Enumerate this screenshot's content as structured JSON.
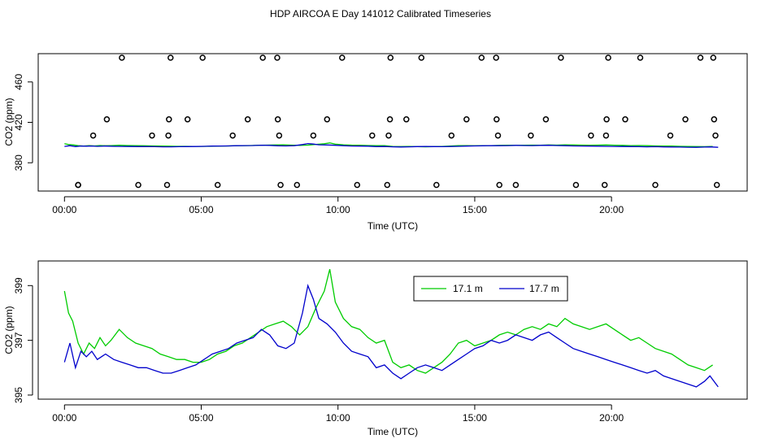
{
  "figure": {
    "title": "HDP AIRCOA E  Day 141012  Calibrated Timeseries"
  },
  "chart_data": [
    {
      "type": "line",
      "xlabel": "Time (UTC)",
      "ylabel": "CO2 (ppm)",
      "xlim": [
        0,
        24
      ],
      "ylim": [
        352,
        488
      ],
      "x_ticks": [
        0,
        5,
        10,
        15,
        20
      ],
      "x_tick_labels": [
        "00:00",
        "05:00",
        "10:00",
        "15:00",
        "20:00"
      ],
      "y_ticks": [
        380,
        420,
        460
      ],
      "y_tick_labels": [
        "380",
        "420",
        "460"
      ],
      "grid": false,
      "legend": "none",
      "calibration_points": [
        [
          0.5,
          358
        ],
        [
          0.5,
          358
        ],
        [
          1.05,
          407
        ],
        [
          1.55,
          423
        ],
        [
          2.1,
          484
        ],
        [
          2.7,
          358
        ],
        [
          3.2,
          407
        ],
        [
          3.75,
          358
        ],
        [
          3.8,
          407
        ],
        [
          3.82,
          423
        ],
        [
          3.88,
          484
        ],
        [
          4.5,
          423
        ],
        [
          5.05,
          484
        ],
        [
          5.6,
          358
        ],
        [
          6.15,
          407
        ],
        [
          6.7,
          423
        ],
        [
          7.25,
          484
        ],
        [
          7.78,
          484
        ],
        [
          7.8,
          423
        ],
        [
          7.85,
          407
        ],
        [
          7.9,
          358
        ],
        [
          8.5,
          358
        ],
        [
          9.1,
          407
        ],
        [
          9.6,
          423
        ],
        [
          10.15,
          484
        ],
        [
          10.7,
          358
        ],
        [
          11.25,
          407
        ],
        [
          11.8,
          358
        ],
        [
          11.85,
          407
        ],
        [
          11.9,
          423
        ],
        [
          11.92,
          484
        ],
        [
          12.5,
          423
        ],
        [
          13.05,
          484
        ],
        [
          13.6,
          358
        ],
        [
          14.15,
          407
        ],
        [
          14.7,
          423
        ],
        [
          15.25,
          484
        ],
        [
          15.78,
          484
        ],
        [
          15.8,
          423
        ],
        [
          15.85,
          407
        ],
        [
          15.9,
          358
        ],
        [
          16.5,
          358
        ],
        [
          17.05,
          407
        ],
        [
          17.6,
          423
        ],
        [
          18.15,
          484
        ],
        [
          18.7,
          358
        ],
        [
          19.25,
          407
        ],
        [
          19.75,
          358
        ],
        [
          19.8,
          407
        ],
        [
          19.82,
          423
        ],
        [
          19.88,
          484
        ],
        [
          20.5,
          423
        ],
        [
          21.05,
          484
        ],
        [
          21.6,
          358
        ],
        [
          22.15,
          407
        ],
        [
          22.7,
          423
        ],
        [
          23.25,
          484
        ],
        [
          23.72,
          484
        ],
        [
          23.75,
          423
        ],
        [
          23.8,
          407
        ],
        [
          23.85,
          358
        ]
      ],
      "series": [
        {
          "name": "17.1 m",
          "color": "#00cc00"
        },
        {
          "name": "17.7 m",
          "color": "#0000cc"
        }
      ]
    },
    {
      "type": "line",
      "xlabel": "Time (UTC)",
      "ylabel": "CO2 (ppm)",
      "xlim": [
        -0.96,
        24.96
      ],
      "ylim": [
        394.85,
        399.9
      ],
      "x_ticks": [
        0,
        5,
        10,
        15,
        20
      ],
      "x_tick_labels": [
        "00:00",
        "05:00",
        "10:00",
        "15:00",
        "20:00"
      ],
      "y_ticks": [
        395,
        397,
        399
      ],
      "y_tick_labels": [
        "395",
        "397",
        "399"
      ],
      "grid": false,
      "legend": "top-center",
      "series": [
        {
          "name": "17.1 m",
          "color": "#00cc00",
          "x": [
            0.0,
            0.15,
            0.3,
            0.5,
            0.7,
            0.9,
            1.1,
            1.3,
            1.5,
            1.7,
            2.0,
            2.3,
            2.6,
            2.9,
            3.2,
            3.5,
            3.8,
            4.1,
            4.4,
            4.7,
            5.0,
            5.3,
            5.6,
            5.9,
            6.2,
            6.5,
            6.8,
            7.1,
            7.4,
            7.7,
            8.0,
            8.3,
            8.6,
            8.9,
            9.2,
            9.5,
            9.7,
            9.9,
            10.2,
            10.5,
            10.8,
            11.1,
            11.4,
            11.7,
            12.0,
            12.3,
            12.6,
            12.9,
            13.2,
            13.5,
            13.8,
            14.1,
            14.4,
            14.7,
            15.0,
            15.3,
            15.6,
            15.9,
            16.2,
            16.5,
            16.8,
            17.1,
            17.4,
            17.7,
            18.0,
            18.3,
            18.6,
            18.9,
            19.2,
            19.5,
            19.8,
            20.1,
            20.4,
            20.7,
            21.0,
            21.3,
            21.6,
            21.9,
            22.2,
            22.5,
            22.8,
            23.1,
            23.4,
            23.7
          ],
          "y": [
            398.8,
            398.0,
            397.7,
            396.9,
            396.5,
            396.9,
            396.7,
            397.1,
            396.8,
            397.0,
            397.4,
            397.1,
            396.9,
            396.8,
            396.7,
            396.5,
            396.4,
            396.3,
            396.3,
            396.2,
            396.2,
            396.3,
            396.5,
            396.6,
            396.8,
            396.9,
            397.1,
            397.3,
            397.5,
            397.6,
            397.7,
            397.5,
            397.2,
            397.5,
            398.2,
            398.8,
            399.6,
            398.4,
            397.8,
            397.5,
            397.4,
            397.1,
            396.9,
            397.0,
            396.2,
            396.0,
            396.1,
            395.9,
            395.8,
            396.0,
            396.2,
            396.5,
            396.9,
            397.0,
            396.8,
            396.9,
            397.0,
            397.2,
            397.3,
            397.2,
            397.4,
            397.5,
            397.4,
            397.6,
            397.5,
            397.8,
            397.6,
            397.5,
            397.4,
            397.5,
            397.6,
            397.4,
            397.2,
            397.0,
            397.1,
            396.9,
            396.7,
            396.6,
            396.5,
            396.3,
            396.1,
            396.0,
            395.9,
            396.1
          ]
        },
        {
          "name": "17.7 m",
          "color": "#0000cc",
          "x": [
            0.0,
            0.2,
            0.4,
            0.6,
            0.8,
            1.0,
            1.2,
            1.5,
            1.8,
            2.1,
            2.4,
            2.7,
            3.0,
            3.3,
            3.6,
            3.9,
            4.2,
            4.5,
            4.8,
            5.1,
            5.4,
            5.7,
            6.0,
            6.3,
            6.6,
            6.9,
            7.2,
            7.5,
            7.8,
            8.1,
            8.4,
            8.7,
            8.9,
            9.1,
            9.3,
            9.6,
            9.9,
            10.2,
            10.5,
            10.8,
            11.1,
            11.4,
            11.7,
            12.0,
            12.3,
            12.6,
            12.9,
            13.2,
            13.5,
            13.8,
            14.1,
            14.4,
            14.7,
            15.0,
            15.3,
            15.6,
            15.9,
            16.2,
            16.5,
            16.8,
            17.1,
            17.4,
            17.7,
            18.0,
            18.3,
            18.6,
            18.9,
            19.2,
            19.5,
            19.8,
            20.1,
            20.4,
            20.7,
            21.0,
            21.3,
            21.6,
            21.9,
            22.2,
            22.5,
            22.8,
            23.1,
            23.4,
            23.6,
            23.9
          ],
          "y": [
            396.2,
            396.9,
            396.0,
            396.6,
            396.4,
            396.6,
            396.3,
            396.5,
            396.3,
            396.2,
            396.1,
            396.0,
            396.0,
            395.9,
            395.8,
            395.8,
            395.9,
            396.0,
            396.1,
            396.3,
            396.5,
            396.6,
            396.7,
            396.9,
            397.0,
            397.1,
            397.4,
            397.2,
            396.8,
            396.7,
            396.9,
            398.0,
            399.0,
            398.5,
            397.8,
            397.6,
            397.3,
            396.9,
            396.6,
            396.5,
            396.4,
            396.0,
            396.1,
            395.8,
            395.6,
            395.8,
            396.0,
            396.1,
            396.0,
            395.9,
            396.1,
            396.3,
            396.5,
            396.7,
            396.8,
            397.0,
            396.9,
            397.0,
            397.2,
            397.1,
            397.0,
            397.2,
            397.3,
            397.1,
            396.9,
            396.7,
            396.6,
            396.5,
            396.4,
            396.3,
            396.2,
            396.1,
            396.0,
            395.9,
            395.8,
            395.9,
            395.7,
            395.6,
            395.5,
            395.4,
            395.3,
            395.5,
            395.7,
            395.3
          ]
        }
      ]
    }
  ]
}
